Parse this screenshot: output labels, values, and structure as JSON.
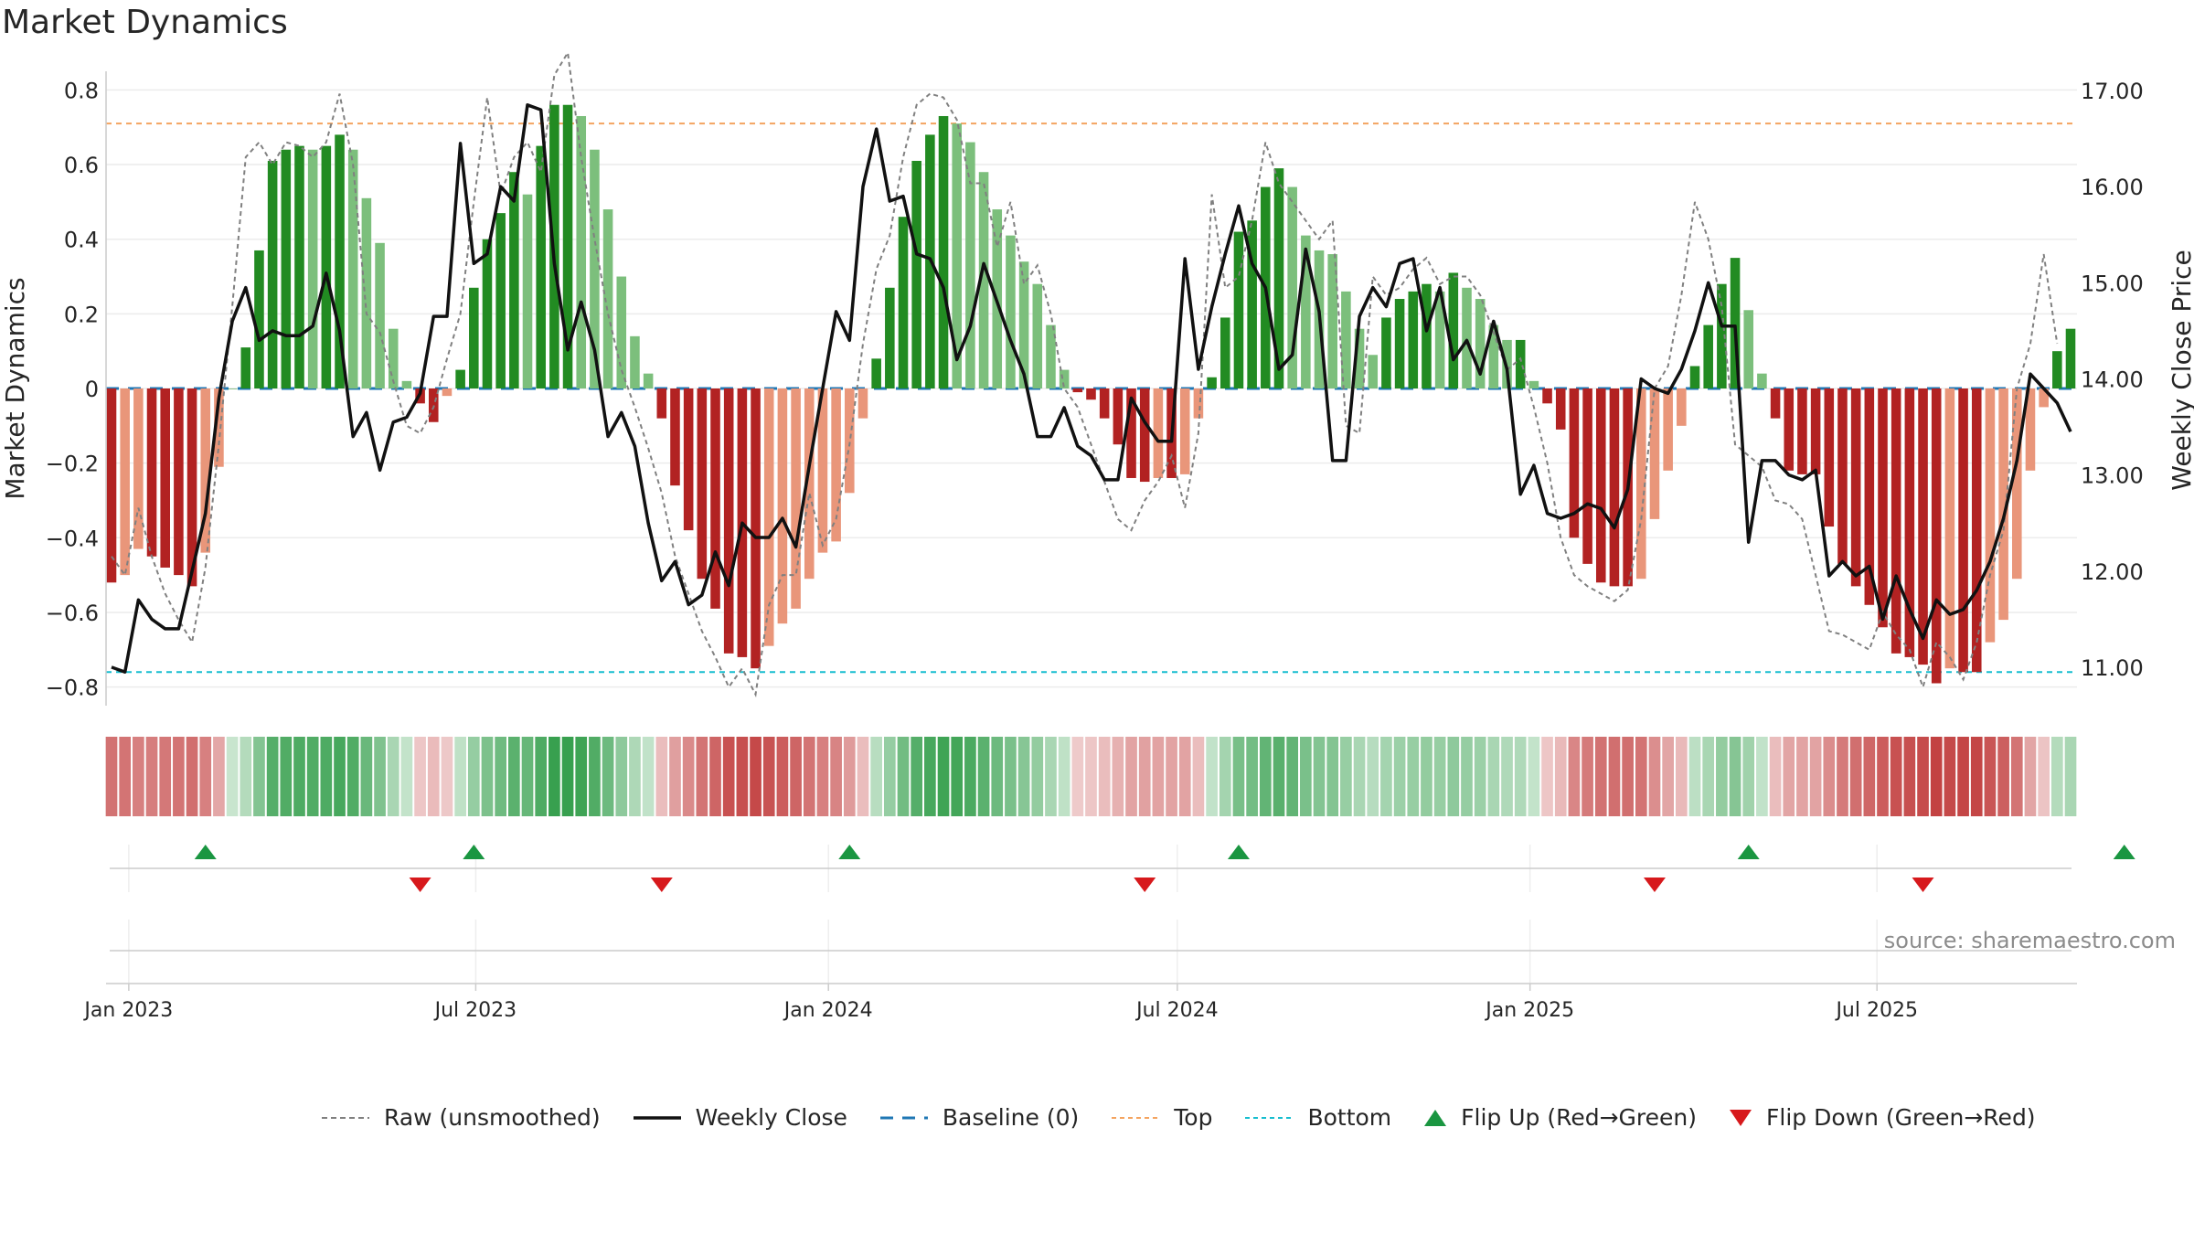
{
  "title": "Market Dynamics",
  "source_text": "source: sharemaestro.com",
  "chart_data": {
    "type": "bar",
    "ylabel_left": "Market Dynamics",
    "ylabel_right": "Weekly Close Price",
    "ylim_left": [
      -0.85,
      0.85
    ],
    "ylim_right": [
      10.6,
      17.2
    ],
    "left_ticks": [
      "0.8",
      "0.6",
      "0.4",
      "0.2",
      "0",
      "−0.2",
      "−0.4",
      "−0.6",
      "−0.8"
    ],
    "right_ticks": [
      "17.00",
      "16.00",
      "15.00",
      "14.00",
      "13.00",
      "12.00",
      "11.00"
    ],
    "x_ticks": [
      "Jan 2023",
      "Jul 2023",
      "Jan 2024",
      "Jul 2024",
      "Jan 2025",
      "Jul 2025"
    ],
    "x_tick_dates": [
      "2023-01-01",
      "2023-07-01",
      "2024-01-01",
      "2024-07-01",
      "2025-01-01",
      "2025-07-01"
    ],
    "top_line": 0.71,
    "bottom_line": -0.76,
    "baseline": 0,
    "start_date": "2022-12-23",
    "interval_days": 7,
    "market_dynamics": [
      -0.52,
      -0.5,
      -0.43,
      -0.45,
      -0.48,
      -0.5,
      -0.53,
      -0.44,
      -0.21,
      0.0,
      0.11,
      0.37,
      0.61,
      0.64,
      0.65,
      0.64,
      0.65,
      0.68,
      0.64,
      0.51,
      0.39,
      0.16,
      0.02,
      -0.04,
      -0.09,
      -0.02,
      0.05,
      0.27,
      0.4,
      0.47,
      0.58,
      0.52,
      0.65,
      0.76,
      0.76,
      0.73,
      0.64,
      0.48,
      0.3,
      0.14,
      0.04,
      -0.08,
      -0.26,
      -0.38,
      -0.51,
      -0.59,
      -0.71,
      -0.72,
      -0.75,
      -0.69,
      -0.63,
      -0.59,
      -0.51,
      -0.44,
      -0.41,
      -0.28,
      -0.08,
      0.08,
      0.27,
      0.46,
      0.61,
      0.68,
      0.73,
      0.71,
      0.66,
      0.58,
      0.48,
      0.41,
      0.34,
      0.28,
      0.17,
      0.05,
      -0.01,
      -0.03,
      -0.08,
      -0.15,
      -0.24,
      -0.25,
      -0.24,
      -0.24,
      -0.23,
      -0.08,
      0.03,
      0.19,
      0.42,
      0.45,
      0.54,
      0.59,
      0.54,
      0.41,
      0.37,
      0.36,
      0.26,
      0.16,
      0.09,
      0.19,
      0.24,
      0.26,
      0.28,
      0.26,
      0.31,
      0.27,
      0.24,
      0.17,
      0.13,
      0.13,
      0.02,
      -0.04,
      -0.11,
      -0.4,
      -0.47,
      -0.52,
      -0.53,
      -0.53,
      -0.51,
      -0.35,
      -0.22,
      -0.1,
      0.06,
      0.17,
      0.28,
      0.35,
      0.21,
      0.04,
      -0.08,
      -0.22,
      -0.23,
      -0.23,
      -0.37,
      -0.47,
      -0.53,
      -0.58,
      -0.64,
      -0.71,
      -0.72,
      -0.74,
      -0.79,
      -0.75,
      -0.76,
      -0.76,
      -0.68,
      -0.62,
      -0.51,
      -0.22,
      -0.05,
      0.1,
      0.16
    ],
    "raw_unsmoothed": [
      -0.45,
      -0.5,
      -0.32,
      -0.45,
      -0.55,
      -0.62,
      -0.68,
      -0.48,
      -0.15,
      0.22,
      0.62,
      0.66,
      0.6,
      0.66,
      0.65,
      0.62,
      0.66,
      0.79,
      0.6,
      0.2,
      0.15,
      0.02,
      -0.1,
      -0.12,
      -0.05,
      0.08,
      0.2,
      0.5,
      0.78,
      0.52,
      0.62,
      0.66,
      0.58,
      0.84,
      0.9,
      0.62,
      0.4,
      0.2,
      0.05,
      -0.05,
      -0.16,
      -0.28,
      -0.45,
      -0.55,
      -0.65,
      -0.72,
      -0.8,
      -0.75,
      -0.82,
      -0.58,
      -0.5,
      -0.5,
      -0.28,
      -0.42,
      -0.35,
      -0.15,
      0.12,
      0.32,
      0.41,
      0.62,
      0.76,
      0.79,
      0.78,
      0.72,
      0.55,
      0.55,
      0.38,
      0.5,
      0.28,
      0.33,
      0.2,
      0.0,
      -0.05,
      -0.15,
      -0.25,
      -0.35,
      -0.38,
      -0.3,
      -0.25,
      -0.18,
      -0.32,
      -0.12,
      0.52,
      0.27,
      0.3,
      0.45,
      0.66,
      0.55,
      0.5,
      0.45,
      0.4,
      0.45,
      -0.1,
      -0.12,
      0.3,
      0.25,
      0.27,
      0.32,
      0.35,
      0.28,
      0.3,
      0.3,
      0.25,
      0.15,
      0.05,
      0.08,
      -0.05,
      -0.2,
      -0.4,
      -0.5,
      -0.53,
      -0.55,
      -0.57,
      -0.54,
      -0.35,
      0.0,
      0.06,
      0.25,
      0.5,
      0.4,
      0.22,
      -0.15,
      -0.18,
      -0.21,
      -0.3,
      -0.31,
      -0.35,
      -0.5,
      -0.65,
      -0.66,
      -0.68,
      -0.7,
      -0.6,
      -0.66,
      -0.7,
      -0.8,
      -0.68,
      -0.72,
      -0.78,
      -0.68,
      -0.5,
      -0.38,
      0.0,
      0.12,
      0.36,
      0.12
    ],
    "weekly_close": [
      11.0,
      10.95,
      11.7,
      11.5,
      11.4,
      11.4,
      12.0,
      12.6,
      13.8,
      14.6,
      14.95,
      14.4,
      14.5,
      14.45,
      14.45,
      14.55,
      15.1,
      14.5,
      13.4,
      13.65,
      13.05,
      13.55,
      13.6,
      13.85,
      14.65,
      14.65,
      16.45,
      15.2,
      15.3,
      16.0,
      15.85,
      16.85,
      16.8,
      15.2,
      14.3,
      14.8,
      14.3,
      13.4,
      13.65,
      13.3,
      12.5,
      11.9,
      12.1,
      11.65,
      11.75,
      12.2,
      11.85,
      12.5,
      12.35,
      12.35,
      12.55,
      12.25,
      13.1,
      13.9,
      14.7,
      14.4,
      16.0,
      16.6,
      15.85,
      15.9,
      15.3,
      15.25,
      14.95,
      14.2,
      14.55,
      15.2,
      14.8,
      14.4,
      14.05,
      13.4,
      13.4,
      13.7,
      13.3,
      13.2,
      12.95,
      12.95,
      13.8,
      13.55,
      13.35,
      13.35,
      15.25,
      14.1,
      14.75,
      15.3,
      15.8,
      15.2,
      14.95,
      14.1,
      14.25,
      15.35,
      14.7,
      13.15,
      13.15,
      14.65,
      14.95,
      14.75,
      15.2,
      15.25,
      14.5,
      14.95,
      14.2,
      14.4,
      14.05,
      14.6,
      14.1,
      12.8,
      13.1,
      12.6,
      12.55,
      12.6,
      12.7,
      12.65,
      12.45,
      12.85,
      14.0,
      13.9,
      13.85,
      14.1,
      14.5,
      15.0,
      14.55,
      14.55,
      12.3,
      13.15,
      13.15,
      13.0,
      12.95,
      13.05,
      11.95,
      12.1,
      11.95,
      12.05,
      11.5,
      11.95,
      11.6,
      11.3,
      11.7,
      11.55,
      11.6,
      11.8,
      12.1,
      12.55,
      13.15,
      14.05,
      13.9,
      13.75,
      13.45
    ],
    "flip_up_weeks": [
      7,
      27,
      55,
      84,
      122,
      150
    ],
    "flip_down_weeks": [
      23,
      41,
      77,
      115,
      135
    ],
    "legend": [
      "Raw (unsmoothed)",
      "Weekly Close",
      "Baseline (0)",
      "Top",
      "Bottom",
      "Flip Up (Red→Green)",
      "Flip Down (Green→Red)"
    ],
    "colors": {
      "strong_green": "#228b22",
      "light_green": "#7cbf7c",
      "strong_red": "#b22222",
      "light_red": "#e9967a",
      "close_line": "#111111",
      "raw_line": "#808080",
      "baseline": "#1f77b4",
      "top": "#f4a460",
      "bottom": "#17becf",
      "flip_up": "#1a9641",
      "flip_down": "#d7191c"
    }
  }
}
